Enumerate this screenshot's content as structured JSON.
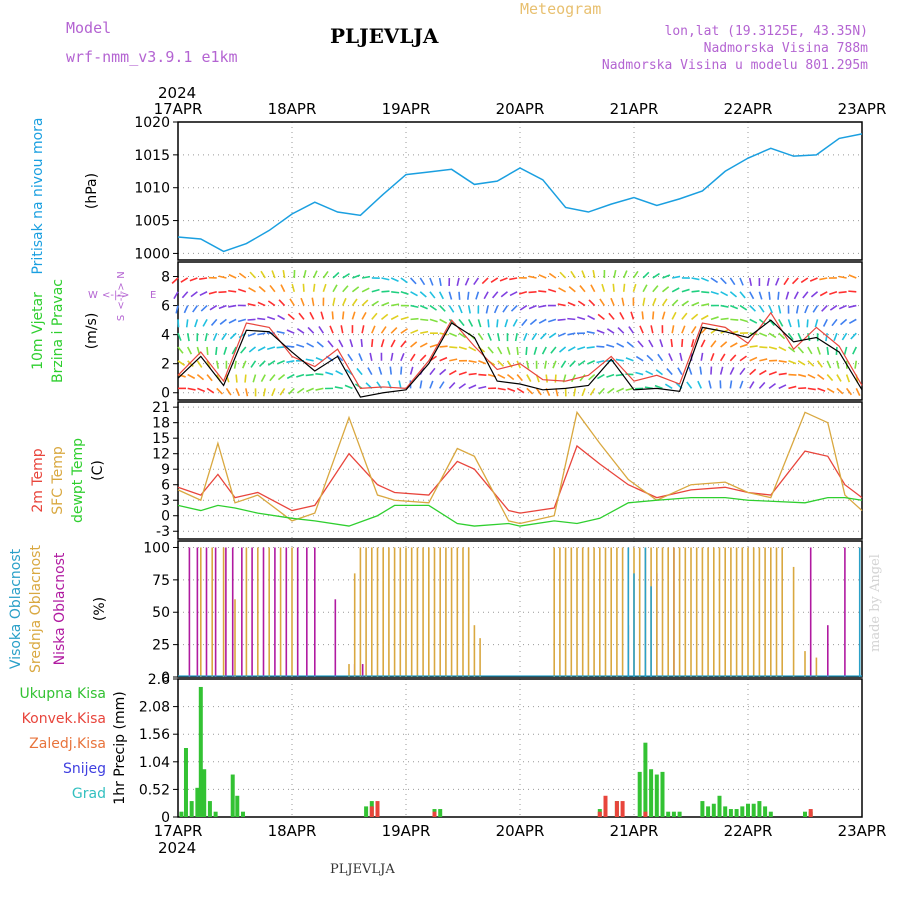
{
  "header": {
    "model_label": "Model",
    "model_name": "wrf-nmm_v3.9.1 e1km",
    "station": "PLJEVLJA",
    "product": "Meteogram",
    "coords": "lon,lat (19.3125E, 43.35N)",
    "altitude": "Nadmorska Visina 788m",
    "model_altitude": "Nadmorska Visina u modelu 801.295m",
    "footer_station": "PLJEVLJA",
    "credit": "made by Angel"
  },
  "colors": {
    "pressure": "#1a9fe0",
    "temp2m": "#e8453c",
    "sfc_temp": "#d9a840",
    "dewpoint": "#2fcf2f",
    "cloud_high": "#2aa0c8",
    "cloud_mid": "#d9a840",
    "cloud_low": "#b01aa0",
    "precip_total": "#33c233",
    "precip_conv": "#e8453c",
    "precip_frozen": "#e8743c",
    "precip_snow": "#4040e0",
    "precip_hail": "#33c0c0"
  },
  "chart_data": [
    {
      "type": "line",
      "panel": "pressure",
      "ylabel_left": "Pritisak na nivou mora",
      "ylabel": "(hPa)",
      "ylim": [
        999,
        1020
      ],
      "yticks": [
        "1020",
        "1015",
        "1010",
        "1005",
        "1000"
      ],
      "x_dates": [
        "17APR",
        "18APR",
        "19APR",
        "20APR",
        "21APR",
        "22APR",
        "23APR"
      ],
      "x_year": "2024",
      "grid": true,
      "series": [
        {
          "x": [
            0,
            0.2,
            0.4,
            0.6,
            0.8,
            1.0,
            1.2,
            1.4,
            1.6,
            1.8,
            2.0,
            2.2,
            2.4,
            2.6,
            2.8,
            3.0,
            3.2,
            3.4,
            3.6,
            3.8,
            4.0,
            4.2,
            4.4,
            4.6,
            4.8,
            5.0,
            5.2,
            5.4,
            5.6,
            5.8,
            6.0
          ],
          "y": [
            1002.5,
            1002.2,
            1000.3,
            1001.5,
            1003.5,
            1006.0,
            1007.8,
            1006.3,
            1005.8,
            1009.0,
            1012.0,
            1012.4,
            1012.8,
            1010.5,
            1011.0,
            1013.0,
            1011.2,
            1007.0,
            1006.3,
            1007.5,
            1008.5,
            1007.3,
            1008.3,
            1009.5,
            1012.5,
            1014.5,
            1016.0,
            1014.8,
            1015.0,
            1017.5,
            1018.2
          ]
        }
      ]
    },
    {
      "type": "line",
      "panel": "wind",
      "ylabel_left": [
        "10m Vjetar",
        "Brzina i Pravac"
      ],
      "ylabel": "(m/s)",
      "compass": [
        "N",
        "W",
        "E",
        "S"
      ],
      "ylim": [
        -0.5,
        9
      ],
      "yticks": [
        "8",
        "6",
        "4",
        "2",
        "0"
      ],
      "grid": true,
      "series": [
        {
          "name": "",
          "x": [
            0,
            0.2,
            0.4,
            0.6,
            0.8,
            1.0,
            1.2,
            1.4,
            1.6,
            1.8,
            2.0,
            2.2,
            2.4,
            2.6,
            2.8,
            3.0,
            3.2,
            3.4,
            3.6,
            3.8,
            4.0,
            4.2,
            4.4,
            4.6,
            4.8,
            5.0,
            5.2,
            5.4,
            5.6,
            5.8,
            6.0
          ],
          "y": [
            1.2,
            2.8,
            0.8,
            4.8,
            4.5,
            2.5,
            1.8,
            3.0,
            0.3,
            0.4,
            0.3,
            2.2,
            5.0,
            3.2,
            1.6,
            2.0,
            0.9,
            0.8,
            1.2,
            2.5,
            0.8,
            1.2,
            0.6,
            4.8,
            4.5,
            3.4,
            5.5,
            3.0,
            4.5,
            3.2,
            0.5
          ]
        },
        {
          "name": "",
          "x": [
            0,
            0.2,
            0.4,
            0.6,
            0.8,
            1.0,
            1.2,
            1.4,
            1.6,
            1.8,
            2.0,
            2.2,
            2.4,
            2.6,
            2.8,
            3.0,
            3.2,
            3.4,
            3.6,
            3.8,
            4.0,
            4.2,
            4.4,
            4.6,
            4.8,
            5.0,
            5.2,
            5.4,
            5.6,
            5.8,
            6.0
          ],
          "y": [
            1.0,
            2.5,
            0.5,
            4.3,
            4.2,
            2.8,
            1.5,
            2.5,
            -0.3,
            0.0,
            0.2,
            2.0,
            4.8,
            3.8,
            0.8,
            0.6,
            0.2,
            0.3,
            0.5,
            2.3,
            0.2,
            0.3,
            0.1,
            4.5,
            4.2,
            3.8,
            5.0,
            3.5,
            3.8,
            2.8,
            0.2
          ]
        }
      ]
    },
    {
      "type": "line",
      "panel": "temperature",
      "ylabel_left": [
        "2m Temp",
        "SFC Temp",
        "dewpt Temp"
      ],
      "ylabel": "(C)",
      "ylim": [
        -4.5,
        22
      ],
      "yticks": [
        "21",
        "18",
        "15",
        "12",
        "9",
        "6",
        "3",
        "0",
        "-3"
      ],
      "grid": true,
      "series": [
        {
          "name": "2m Temp",
          "x": [
            0,
            0.2,
            0.35,
            0.5,
            0.7,
            1.0,
            1.2,
            1.5,
            1.75,
            1.9,
            2.2,
            2.45,
            2.6,
            2.9,
            3.0,
            3.3,
            3.5,
            3.7,
            3.95,
            4.2,
            4.5,
            4.8,
            5.0,
            5.2,
            5.5,
            5.7,
            5.85,
            6.0
          ],
          "y": [
            5.5,
            4.0,
            8.0,
            3.5,
            4.5,
            1.0,
            2.0,
            12.0,
            6.0,
            4.5,
            4.0,
            10.5,
            9.0,
            1.0,
            0.5,
            1.5,
            13.5,
            10.0,
            6.0,
            3.5,
            5.0,
            5.5,
            4.5,
            4.0,
            12.5,
            11.5,
            6.0,
            3.5
          ]
        },
        {
          "name": "SFC Temp",
          "x": [
            0,
            0.2,
            0.35,
            0.5,
            0.7,
            1.0,
            1.2,
            1.5,
            1.75,
            1.9,
            2.2,
            2.45,
            2.6,
            2.9,
            3.0,
            3.3,
            3.5,
            3.7,
            3.95,
            4.2,
            4.5,
            4.8,
            5.0,
            5.2,
            5.5,
            5.7,
            5.85,
            6.0
          ],
          "y": [
            5.0,
            3.0,
            14.0,
            2.5,
            4.0,
            -1.0,
            0.5,
            19.0,
            4.0,
            3.0,
            2.5,
            13.0,
            11.5,
            -1.0,
            -1.5,
            0.0,
            20.0,
            14.0,
            7.0,
            3.0,
            6.0,
            6.5,
            4.5,
            3.5,
            20.0,
            18.0,
            4.0,
            1.0
          ]
        },
        {
          "name": "dewpt Temp",
          "x": [
            0,
            0.2,
            0.35,
            0.5,
            0.7,
            1.0,
            1.2,
            1.5,
            1.75,
            1.9,
            2.2,
            2.45,
            2.6,
            2.9,
            3.0,
            3.3,
            3.5,
            3.7,
            3.95,
            4.2,
            4.5,
            4.8,
            5.0,
            5.2,
            5.5,
            5.7,
            5.85,
            6.0
          ],
          "y": [
            2.0,
            1.0,
            2.0,
            1.5,
            0.5,
            -0.5,
            -1.0,
            -2.0,
            0.0,
            2.0,
            2.0,
            -1.5,
            -2.0,
            -1.5,
            -2.0,
            -1.0,
            -1.5,
            -0.5,
            2.5,
            3.0,
            3.5,
            3.5,
            3.0,
            2.8,
            2.5,
            3.5,
            3.5,
            3.0
          ]
        }
      ]
    },
    {
      "type": "bar",
      "panel": "cloud",
      "ylabel_left": [
        "Visoka Oblacnost",
        "Srednja Oblacnost",
        "Niska Oblacnost"
      ],
      "ylabel": "(%)",
      "ylim": [
        0,
        105
      ],
      "yticks": [
        "100",
        "75",
        "50",
        "25",
        "0"
      ],
      "grid": true,
      "series": [
        {
          "name": "Niska Oblacnost",
          "x": [
            0.1,
            0.17,
            0.25,
            0.33,
            0.42,
            0.48,
            0.56,
            0.65,
            0.75,
            0.85,
            0.95,
            1.05,
            1.13,
            1.2,
            1.38,
            1.55,
            1.62,
            3.95,
            4.2,
            4.35,
            5.55,
            5.7,
            5.85
          ],
          "values": [
            100,
            100,
            100,
            100,
            100,
            100,
            100,
            100,
            100,
            100,
            100,
            100,
            100,
            100,
            60,
            10,
            10,
            40,
            80,
            100,
            100,
            40,
            100
          ]
        },
        {
          "name": "Srednja Oblacnost",
          "x": [
            0.2,
            0.3,
            0.4,
            0.5,
            0.6,
            0.7,
            0.8,
            0.9,
            1.0,
            1.5,
            1.55,
            1.6,
            1.65,
            1.7,
            1.75,
            1.8,
            1.85,
            1.9,
            1.95,
            2.0,
            2.05,
            2.1,
            2.15,
            2.2,
            2.25,
            2.3,
            2.35,
            2.4,
            2.45,
            2.5,
            2.55,
            2.6,
            2.65,
            3.3,
            3.35,
            3.4,
            3.45,
            3.5,
            3.55,
            3.6,
            3.65,
            3.7,
            3.75,
            3.8,
            3.85,
            3.9,
            3.95,
            4.0,
            4.05,
            4.1,
            4.15,
            4.2,
            4.25,
            4.3,
            4.35,
            4.4,
            4.45,
            4.5,
            4.55,
            4.6,
            4.65,
            4.7,
            4.75,
            4.8,
            4.85,
            4.9,
            4.95,
            5.0,
            5.05,
            5.1,
            5.15,
            5.2,
            5.25,
            5.3,
            5.4,
            5.5,
            5.6
          ],
          "values": [
            100,
            100,
            100,
            60,
            100,
            100,
            100,
            100,
            100,
            10,
            80,
            100,
            100,
            100,
            100,
            100,
            100,
            100,
            100,
            100,
            100,
            100,
            100,
            100,
            100,
            100,
            100,
            100,
            100,
            100,
            100,
            40,
            30,
            100,
            100,
            100,
            100,
            100,
            100,
            100,
            100,
            100,
            100,
            100,
            100,
            100,
            100,
            100,
            100,
            100,
            100,
            100,
            100,
            100,
            100,
            100,
            100,
            100,
            100,
            100,
            100,
            100,
            100,
            100,
            100,
            100,
            100,
            100,
            100,
            100,
            100,
            100,
            100,
            100,
            85,
            20,
            15
          ]
        },
        {
          "name": "Visoka Oblacnost",
          "x": [
            3.95,
            4.0,
            4.1,
            4.15,
            5.98
          ],
          "values": [
            100,
            80,
            100,
            70,
            100
          ]
        }
      ]
    },
    {
      "type": "bar",
      "panel": "precipitation",
      "ylabel_left": [
        "Ukupna Kisa",
        "Konvek.Kisa",
        "Zaledj.Kisa",
        "Snijeg",
        "Grad"
      ],
      "ylabel": "1hr Precip (mm)",
      "ylim": [
        0,
        2.6
      ],
      "yticks": [
        "2.6",
        "2.08",
        "1.56",
        "1.04",
        "0.52",
        "0"
      ],
      "x_dates": [
        "17APR",
        "18APR",
        "19APR",
        "20APR",
        "21APR",
        "22APR",
        "23APR"
      ],
      "x_year": "2024",
      "grid": true,
      "series": [
        {
          "name": "Ukupna Kisa",
          "x": [
            0.03,
            0.07,
            0.12,
            0.17,
            0.2,
            0.23,
            0.28,
            0.33,
            0.48,
            0.52,
            0.57,
            1.65,
            1.7,
            1.75,
            2.25,
            2.3,
            3.7,
            3.75,
            3.85,
            4.05,
            4.1,
            4.15,
            4.2,
            4.25,
            4.3,
            4.35,
            4.4,
            4.6,
            4.65,
            4.7,
            4.75,
            4.8,
            4.85,
            4.9,
            4.95,
            5.0,
            5.05,
            5.1,
            5.15,
            5.2,
            5.5,
            5.55
          ],
          "values": [
            0.1,
            1.3,
            0.3,
            0.55,
            2.45,
            0.9,
            0.3,
            0.1,
            0.8,
            0.4,
            0.1,
            0.2,
            0.3,
            0.2,
            0.15,
            0.15,
            0.15,
            0.3,
            0.3,
            0.85,
            1.4,
            0.9,
            0.8,
            0.85,
            0.1,
            0.1,
            0.1,
            0.3,
            0.2,
            0.25,
            0.4,
            0.2,
            0.15,
            0.15,
            0.2,
            0.25,
            0.25,
            0.3,
            0.2,
            0.1,
            0.1,
            0.1
          ]
        },
        {
          "name": "Konvek.Kisa",
          "x": [
            1.7,
            1.75,
            2.25,
            3.7,
            3.75,
            3.85,
            3.9,
            4.1,
            5.55
          ],
          "values": [
            0.2,
            0.3,
            0.1,
            0.1,
            0.4,
            0.3,
            0.3,
            0.1,
            0.15
          ]
        },
        {
          "name": "Zaledj.Kisa",
          "x": [],
          "values": []
        },
        {
          "name": "Snijeg",
          "x": [],
          "values": []
        },
        {
          "name": "Grad",
          "x": [],
          "values": []
        }
      ]
    }
  ]
}
